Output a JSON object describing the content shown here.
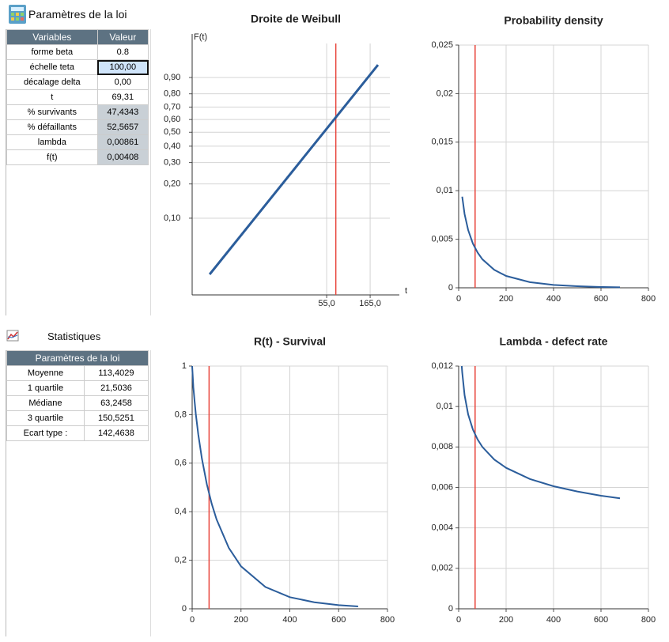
{
  "params": {
    "title": "Paramètres de la loi",
    "header": [
      "Variables",
      "Valeur"
    ],
    "rows": [
      [
        "forme beta",
        "0.8"
      ],
      [
        "échelle teta",
        "100,00"
      ],
      [
        "décalage delta",
        "0,00"
      ],
      [
        "t",
        "69,31"
      ],
      [
        "% survivants",
        "47,4343"
      ],
      [
        "% défaillants",
        "52,5657"
      ],
      [
        "lambda",
        "0,00861"
      ],
      [
        "f(t)",
        "0,00408"
      ]
    ]
  },
  "stats": {
    "title": "Statistiques",
    "header": "Paramètres de la loi",
    "rows": [
      [
        "Moyenne",
        "113,4029"
      ],
      [
        "1 quartile",
        "21,5036"
      ],
      [
        "Médiane",
        "63,2458"
      ],
      [
        "3 quartile",
        "150,5251"
      ],
      [
        "Ecart type :",
        "142,4638"
      ]
    ]
  },
  "chart_data": [
    {
      "type": "weibull",
      "title": "Droite de Weibull",
      "ylabel": "F(t)",
      "xlabel": "t",
      "xscale": "log",
      "yscale": "weibull",
      "x": [
        2.86,
        201
      ],
      "values": [
        0.0303,
        0.952
      ],
      "color": "#2b5d9b",
      "vline": 69.31,
      "vline_color": "#e8453c",
      "xlim": [
        1.84,
        345
      ],
      "ylim": [
        0.0194,
        0.9922
      ],
      "xticks": [
        {
          "value": 55,
          "label": "55,0"
        },
        {
          "value": 165,
          "label": "165,0"
        }
      ],
      "yticks": [
        {
          "value": 0.1,
          "label": "0,10"
        },
        {
          "value": 0.2,
          "label": "0,20"
        },
        {
          "value": 0.3,
          "label": "0,30"
        },
        {
          "value": 0.4,
          "label": "0,40"
        },
        {
          "value": 0.5,
          "label": "0,50"
        },
        {
          "value": 0.6,
          "label": "0,60"
        },
        {
          "value": 0.7,
          "label": "0,70"
        },
        {
          "value": 0.8,
          "label": "0,80"
        },
        {
          "value": 0.9,
          "label": "0,90"
        }
      ],
      "grid": true
    },
    {
      "type": "line",
      "title": "Probability density",
      "x": [
        15,
        25,
        40,
        60,
        80,
        100,
        150,
        200,
        300,
        400,
        500,
        600,
        680
      ],
      "values": [
        0.00939,
        0.00759,
        0.00595,
        0.00455,
        0.00362,
        0.00294,
        0.00185,
        0.00122,
        0.00058,
        0.00029,
        0.00016,
        8e-05,
        5e-05
      ],
      "color": "#2b5d9b",
      "vline": 69.31,
      "vline_color": "#e8453c",
      "xlim": [
        0,
        800
      ],
      "ylim": [
        0,
        0.025
      ],
      "xticks": [
        0,
        200,
        400,
        600,
        800
      ],
      "yticks": [
        0,
        {
          "value": 0.005,
          "label": "0,005"
        },
        {
          "value": 0.01,
          "label": "0,01"
        },
        {
          "value": 0.015,
          "label": "0,015"
        },
        {
          "value": 0.02,
          "label": "0,02"
        },
        {
          "value": 0.025,
          "label": "0,025"
        }
      ],
      "grid": true
    },
    {
      "type": "line",
      "title": "R(t) - Survival",
      "x": [
        0,
        5,
        10,
        15,
        25,
        40,
        60,
        80,
        100,
        150,
        200,
        300,
        400,
        500,
        600,
        680
      ],
      "values": [
        1,
        0.913,
        0.854,
        0.803,
        0.719,
        0.619,
        0.514,
        0.433,
        0.368,
        0.251,
        0.175,
        0.09,
        0.048,
        0.027,
        0.015,
        0.0097
      ],
      "color": "#2b5d9b",
      "vline": 69.31,
      "vline_color": "#e8453c",
      "xlim": [
        0,
        800
      ],
      "ylim": [
        0,
        1
      ],
      "xticks": [
        0,
        200,
        400,
        600,
        800
      ],
      "yticks": [
        0,
        {
          "value": 0.2,
          "label": "0,2"
        },
        {
          "value": 0.4,
          "label": "0,4"
        },
        {
          "value": 0.6,
          "label": "0,6"
        },
        {
          "value": 0.8,
          "label": "0,8"
        },
        1
      ],
      "grid": true
    },
    {
      "type": "line",
      "title": "Lambda - defect rate",
      "x": [
        13,
        15,
        25,
        40,
        60,
        80,
        100,
        150,
        200,
        300,
        400,
        500,
        600,
        680
      ],
      "values": [
        0.012,
        0.01169,
        0.01056,
        0.00961,
        0.00886,
        0.00837,
        0.008,
        0.00738,
        0.00697,
        0.00642,
        0.00606,
        0.0058,
        0.00559,
        0.00546
      ],
      "color": "#2b5d9b",
      "vline": 69.31,
      "vline_color": "#e8453c",
      "xlim": [
        0,
        800
      ],
      "ylim": [
        0,
        0.012
      ],
      "xticks": [
        0,
        200,
        400,
        600,
        800
      ],
      "yticks": [
        0,
        {
          "value": 0.002,
          "label": "0,002"
        },
        {
          "value": 0.004,
          "label": "0,004"
        },
        {
          "value": 0.006,
          "label": "0,006"
        },
        {
          "value": 0.008,
          "label": "0,008"
        },
        {
          "value": 0.01,
          "label": "0,01"
        },
        {
          "value": 0.012,
          "label": "0,012"
        }
      ],
      "grid": true
    }
  ]
}
